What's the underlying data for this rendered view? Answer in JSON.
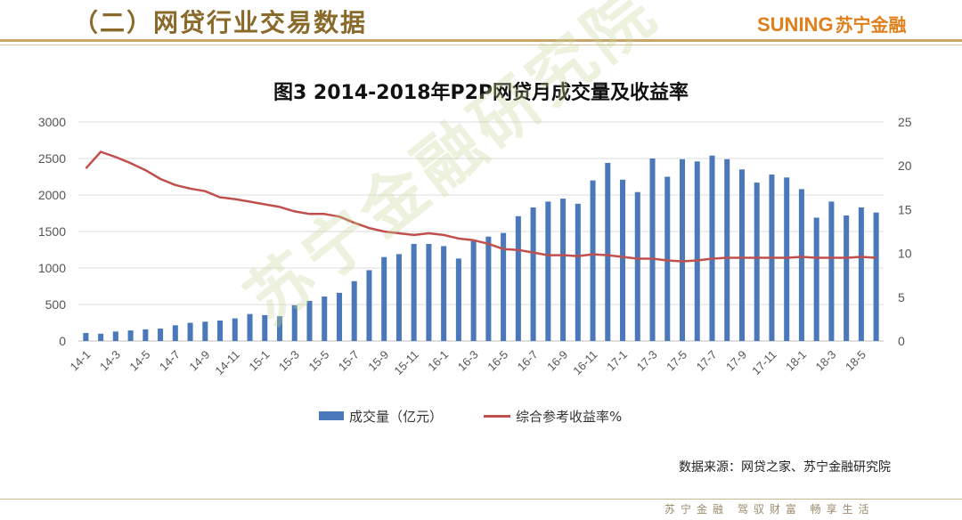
{
  "header": {
    "section_title": "（二）网贷行业交易数据",
    "brand_en": "SUNING",
    "brand_cn": "苏宁金融"
  },
  "watermark": "苏宁金融研究院",
  "chart_data": {
    "type": "bar",
    "title": "图3  2014-2018年P2P网贷月成交量及收益率",
    "x": [
      "14-1",
      "14-2",
      "14-3",
      "14-4",
      "14-5",
      "14-6",
      "14-7",
      "14-8",
      "14-9",
      "14-10",
      "14-11",
      "14-12",
      "15-1",
      "15-2",
      "15-3",
      "15-4",
      "15-5",
      "15-6",
      "15-7",
      "15-8",
      "15-9",
      "15-10",
      "15-11",
      "15-12",
      "16-1",
      "16-2",
      "16-3",
      "16-4",
      "16-5",
      "16-6",
      "16-7",
      "16-8",
      "16-9",
      "16-10",
      "16-11",
      "16-12",
      "17-1",
      "17-2",
      "17-3",
      "17-4",
      "17-5",
      "17-6",
      "17-7",
      "17-8",
      "17-9",
      "17-10",
      "17-11",
      "17-12",
      "18-1",
      "18-2",
      "18-3",
      "18-4",
      "18-5",
      "18-6"
    ],
    "x_tick_labels": [
      "14-1",
      "14-3",
      "14-5",
      "14-7",
      "14-9",
      "14-11",
      "15-1",
      "15-3",
      "15-5",
      "15-7",
      "15-9",
      "15-11",
      "16-1",
      "16-3",
      "16-5",
      "16-7",
      "16-9",
      "16-11",
      "17-1",
      "17-3",
      "17-5",
      "17-7",
      "17-9",
      "17-11",
      "18-1",
      "18-3",
      "18-5"
    ],
    "series": [
      {
        "name": "成交量（亿元）",
        "kind": "bar",
        "axis": "left",
        "color": "#4a78b8",
        "values": [
          110,
          100,
          130,
          145,
          160,
          170,
          215,
          250,
          265,
          280,
          310,
          370,
          355,
          340,
          490,
          550,
          610,
          660,
          820,
          970,
          1150,
          1190,
          1330,
          1330,
          1300,
          1130,
          1370,
          1430,
          1480,
          1710,
          1830,
          1910,
          1950,
          1880,
          2200,
          2440,
          2210,
          2040,
          2500,
          2250,
          2490,
          2460,
          2540,
          2490,
          2350,
          2170,
          2280,
          2240,
          2080,
          1690,
          1910,
          1720,
          1830,
          1760
        ]
      },
      {
        "name": "综合参考收益率%",
        "kind": "line",
        "axis": "right",
        "color": "#c0504d",
        "values": [
          19.7,
          21.6,
          21.0,
          20.3,
          19.5,
          18.5,
          17.8,
          17.4,
          17.1,
          16.4,
          16.2,
          15.9,
          15.6,
          15.3,
          14.8,
          14.5,
          14.5,
          14.2,
          13.5,
          12.9,
          12.5,
          12.3,
          12.1,
          12.3,
          12.1,
          11.7,
          11.5,
          11.1,
          10.5,
          10.4,
          10.1,
          9.8,
          9.8,
          9.7,
          9.9,
          9.8,
          9.6,
          9.4,
          9.4,
          9.2,
          9.1,
          9.2,
          9.4,
          9.5,
          9.5,
          9.5,
          9.5,
          9.5,
          9.6,
          9.5,
          9.5,
          9.5,
          9.6,
          9.5
        ]
      }
    ],
    "y_left": {
      "min": 0,
      "max": 3000,
      "ticks": [
        0,
        500,
        1000,
        1500,
        2000,
        2500,
        3000
      ]
    },
    "y_right": {
      "min": 0,
      "max": 25,
      "ticks": [
        0,
        5,
        10,
        15,
        20,
        25
      ]
    },
    "grid": true,
    "legend_position": "bottom"
  },
  "source_text": "数据来源：网贷之家、苏宁金融研究院",
  "footer_text": "苏宁金融  驾驭财富  畅享生活"
}
